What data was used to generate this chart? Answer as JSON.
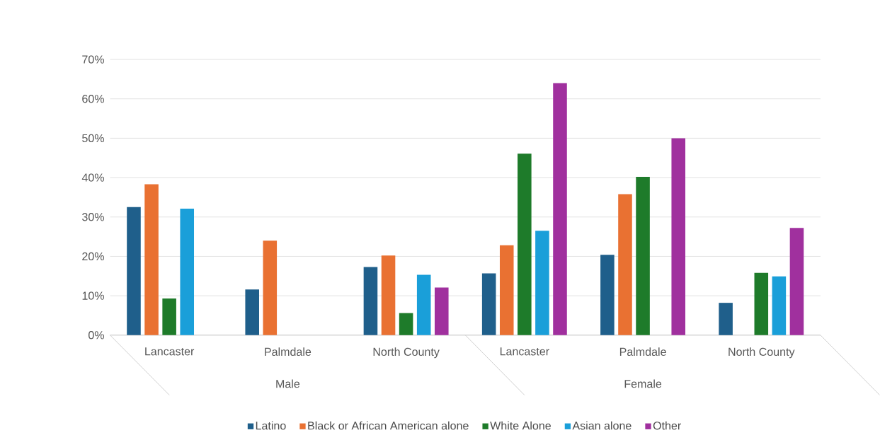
{
  "chart_data": {
    "type": "bar",
    "categories": [
      "Lancaster",
      "Palmdale",
      "North County",
      "Lancaster",
      "Palmdale",
      "North County"
    ],
    "annotations": [
      "Male",
      "Female"
    ],
    "series": [
      {
        "name": "Latino",
        "color": "#1f5f8b",
        "values": [
          32.5,
          11.6,
          17.3,
          15.7,
          20.4,
          8.2
        ]
      },
      {
        "name": "Black or African American alone",
        "color": "#e97132",
        "values": [
          38.3,
          24.0,
          20.2,
          22.8,
          35.8,
          null
        ]
      },
      {
        "name": "White Alone",
        "color": "#1e7b2a",
        "values": [
          9.3,
          null,
          5.6,
          46.1,
          40.2,
          15.8
        ]
      },
      {
        "name": "Asian alone",
        "color": "#1a9fd9",
        "values": [
          32.1,
          null,
          15.3,
          26.5,
          null,
          14.9
        ]
      },
      {
        "name": "Other",
        "color": "#a0309e",
        "values": [
          null,
          null,
          12.1,
          64.0,
          50.0,
          27.2
        ]
      }
    ],
    "ylim": [
      0,
      70
    ],
    "yticks": [
      {
        "value": 0,
        "label": "0%"
      },
      {
        "value": 10,
        "label": "10%"
      },
      {
        "value": 20,
        "label": "20%"
      },
      {
        "value": 30,
        "label": "30%"
      },
      {
        "value": 40,
        "label": "40%"
      },
      {
        "value": 50,
        "label": "50%"
      },
      {
        "value": 60,
        "label": "60%"
      },
      {
        "value": 70,
        "label": "70%"
      }
    ],
    "grid": "y",
    "legend": "bottom"
  }
}
